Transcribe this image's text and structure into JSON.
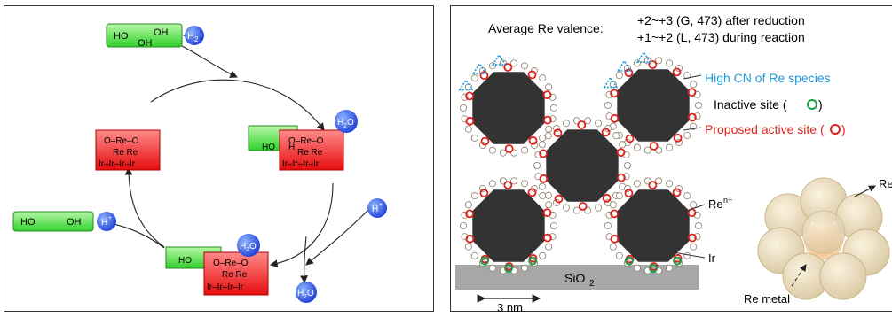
{
  "left_cycle": {
    "glycerol": {
      "ho1": "HO",
      "oh_top": "OH",
      "oh_bottom": "OH"
    },
    "h2": "H",
    "h2_sub": "2",
    "h2_plus": "+",
    "left_complex": {
      "row1": "O–Re–O",
      "row2": "Re Re",
      "row3": "Ir–Ir–Ir–Ir"
    },
    "right_complex": {
      "ho": "HO",
      "o": "O",
      "h": "H",
      "row1": "O–Re–O",
      "row2": "Re Re",
      "row3": "Ir–Ir–Ir–Ir"
    },
    "bottom_complex": {
      "ho": "HO",
      "row1": "O–Re–O",
      "row2": "Re Re",
      "row3": "Ir–Ir–Ir–Ir"
    },
    "propanediol": {
      "ho": "HO",
      "oh": "OH"
    },
    "h_plus": "H",
    "plus_sup": "+",
    "water": "H",
    "water_sub": "2",
    "water_o": "O"
  },
  "right_schema": {
    "valence_label": "Average  Re valence:",
    "valence_line1": "+2~+3 (G, 473) after reduction",
    "valence_line2": "+1~+2 (L, 473) during reaction",
    "legend_high_cn": "High CN of Re species",
    "legend_inactive": "Inactive site (",
    "legend_inactive_end": ")",
    "legend_active": "Proposed active site (",
    "legend_active_end": ")",
    "label_ren": "Re",
    "label_ren_sup": "n+",
    "label_ir": "Ir",
    "label_support": "SiO",
    "label_support_sub": "2",
    "scale": "3 nm",
    "label_ren_cut": "Re",
    "label_ren_cut_sup": "n",
    "label_re_metal": "Re metal",
    "colors": {
      "high_cn": "#1b9bd7",
      "active": "#e0201b",
      "inactive": "#1a9e4b"
    }
  }
}
